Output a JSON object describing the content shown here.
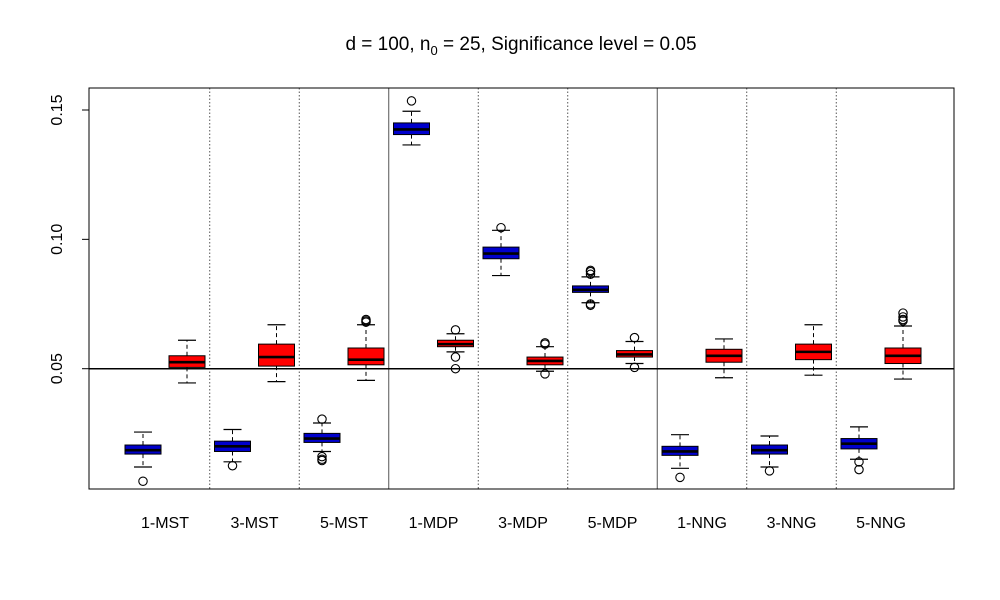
{
  "chart_data": {
    "type": "box",
    "title_parts": {
      "prefix": "d = 100, n",
      "subscript": "0",
      "suffix": " = 25, Significance level = 0.05"
    },
    "xlabel": "",
    "ylabel": "",
    "ylim": [
      0.0035,
      0.1585
    ],
    "y_ticks": [
      "0.05",
      "0.10",
      "0.15"
    ],
    "y_tick_values": [
      0.05,
      0.1,
      0.15
    ],
    "reference_line": 0.05,
    "groups": [
      "1-MST",
      "3-MST",
      "5-MST",
      "1-MDP",
      "3-MDP",
      "5-MDP",
      "1-NNG",
      "3-NNG",
      "5-NNG"
    ],
    "major_separators_after": [
      3,
      6
    ],
    "series": [
      {
        "name": "blue",
        "color": "#0000cc",
        "boxes": [
          {
            "min": 0.012,
            "q1": 0.017,
            "median": 0.0185,
            "q3": 0.0205,
            "max": 0.0255,
            "outliers": [
              0.0065
            ]
          },
          {
            "min": 0.014,
            "q1": 0.018,
            "median": 0.02,
            "q3": 0.022,
            "max": 0.0265,
            "outliers": [
              0.0125
            ]
          },
          {
            "min": 0.018,
            "q1": 0.0215,
            "median": 0.023,
            "q3": 0.025,
            "max": 0.029,
            "outliers": [
              0.0305,
              0.016,
              0.015,
              0.0145
            ]
          },
          {
            "min": 0.1365,
            "q1": 0.1405,
            "median": 0.1425,
            "q3": 0.145,
            "max": 0.1495,
            "outliers": [
              0.1535
            ]
          },
          {
            "min": 0.086,
            "q1": 0.0925,
            "median": 0.0945,
            "q3": 0.097,
            "max": 0.1035,
            "outliers": [
              0.1045
            ]
          },
          {
            "min": 0.0755,
            "q1": 0.0795,
            "median": 0.0805,
            "q3": 0.082,
            "max": 0.0855,
            "outliers": [
              0.088,
              0.0875,
              0.0865,
              0.075,
              0.0745
            ]
          },
          {
            "min": 0.0115,
            "q1": 0.0165,
            "median": 0.018,
            "q3": 0.02,
            "max": 0.0245,
            "outliers": [
              0.008
            ]
          },
          {
            "min": 0.012,
            "q1": 0.017,
            "median": 0.0185,
            "q3": 0.0205,
            "max": 0.024,
            "outliers": [
              0.0105
            ]
          },
          {
            "min": 0.015,
            "q1": 0.019,
            "median": 0.021,
            "q3": 0.023,
            "max": 0.0275,
            "outliers": [
              0.014,
              0.011
            ]
          }
        ]
      },
      {
        "name": "red",
        "color": "#ff0000",
        "boxes": [
          {
            "min": 0.0445,
            "q1": 0.0505,
            "median": 0.0525,
            "q3": 0.055,
            "max": 0.061,
            "outliers": []
          },
          {
            "min": 0.045,
            "q1": 0.051,
            "median": 0.0545,
            "q3": 0.0595,
            "max": 0.067,
            "outliers": []
          },
          {
            "min": 0.0455,
            "q1": 0.0515,
            "median": 0.0535,
            "q3": 0.058,
            "max": 0.067,
            "outliers": [
              0.069,
              0.0685,
              0.068
            ]
          },
          {
            "min": 0.0565,
            "q1": 0.0585,
            "median": 0.0595,
            "q3": 0.061,
            "max": 0.0635,
            "outliers": [
              0.065,
              0.0545,
              0.05
            ]
          },
          {
            "min": 0.049,
            "q1": 0.0515,
            "median": 0.053,
            "q3": 0.0545,
            "max": 0.0585,
            "outliers": [
              0.06,
              0.0595,
              0.048
            ]
          },
          {
            "min": 0.052,
            "q1": 0.0545,
            "median": 0.0555,
            "q3": 0.057,
            "max": 0.0605,
            "outliers": [
              0.062,
              0.0505
            ]
          },
          {
            "min": 0.0465,
            "q1": 0.0525,
            "median": 0.055,
            "q3": 0.0575,
            "max": 0.0615,
            "outliers": []
          },
          {
            "min": 0.0475,
            "q1": 0.0535,
            "median": 0.0565,
            "q3": 0.0595,
            "max": 0.067,
            "outliers": []
          },
          {
            "min": 0.046,
            "q1": 0.052,
            "median": 0.055,
            "q3": 0.058,
            "max": 0.0665,
            "outliers": [
              0.0715,
              0.07,
              0.069,
              0.0685
            ]
          }
        ]
      }
    ]
  }
}
